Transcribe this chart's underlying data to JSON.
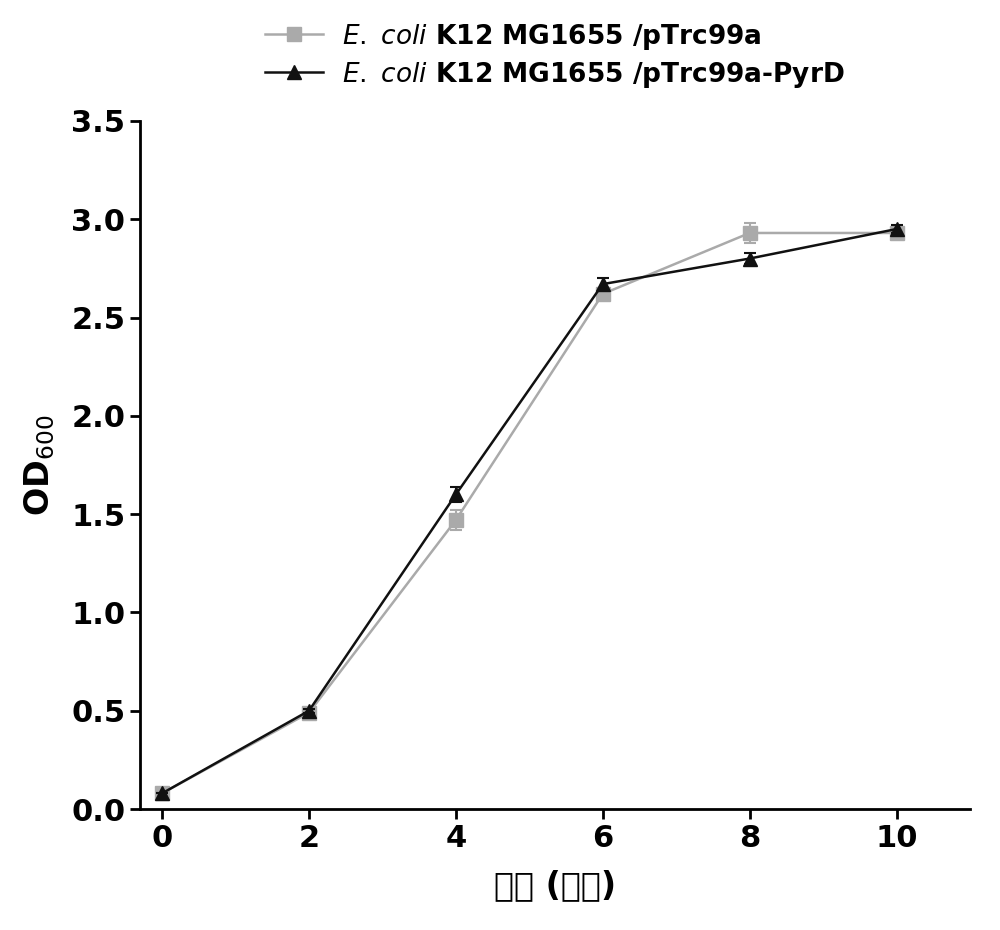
{
  "x": [
    0,
    2,
    4,
    6,
    8,
    10
  ],
  "series1_y": [
    0.08,
    0.49,
    1.47,
    2.62,
    2.93,
    2.93
  ],
  "series1_err": [
    0.0,
    0.01,
    0.05,
    0.03,
    0.05,
    0.03
  ],
  "series2_y": [
    0.08,
    0.5,
    1.6,
    2.67,
    2.8,
    2.95
  ],
  "series2_err": [
    0.0,
    0.01,
    0.04,
    0.03,
    0.03,
    0.02
  ],
  "series1_color": "#aaaaaa",
  "series2_color": "#111111",
  "xlabel": "时间 (小时)",
  "xlim": [
    -0.3,
    11.0
  ],
  "ylim": [
    0.0,
    3.5
  ],
  "xticks": [
    0,
    2,
    4,
    6,
    8,
    10
  ],
  "yticks": [
    0.0,
    0.5,
    1.0,
    1.5,
    2.0,
    2.5,
    3.0,
    3.5
  ],
  "tick_fontsize": 22,
  "label_fontsize": 24,
  "legend_fontsize": 19,
  "line_width": 1.8,
  "marker_size": 10,
  "cap_size": 4,
  "background_color": "#ffffff"
}
